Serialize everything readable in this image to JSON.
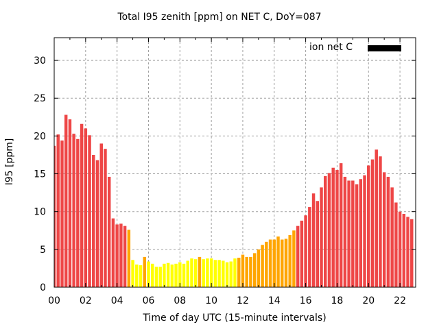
{
  "chart_data": {
    "type": "bar",
    "title": "Total I95 zenith [ppm] on NET C, DoY=087",
    "xlabel": "Time of day UTC (15-minute intervals)",
    "ylabel": "I95 [ppm]",
    "xlim": [
      0,
      23
    ],
    "ylim": [
      0,
      33
    ],
    "x_interval_hours": 0.25,
    "x_ticks": [
      "00",
      "02",
      "04",
      "06",
      "08",
      "10",
      "12",
      "14",
      "16",
      "18",
      "20",
      "22"
    ],
    "x_tick_values": [
      0,
      2,
      4,
      6,
      8,
      10,
      12,
      14,
      16,
      18,
      20,
      22
    ],
    "y_ticks": [
      "0",
      "5",
      "10",
      "15",
      "20",
      "25",
      "30"
    ],
    "y_tick_values": [
      0,
      5,
      10,
      15,
      20,
      25,
      30
    ],
    "grid": true,
    "legend": {
      "label": "ion net C",
      "color": "#000000",
      "placement": "top-right"
    },
    "colors": {
      "red": "#ee4646",
      "orange": "#ffa500",
      "yellow": "#ffff00"
    },
    "values": [
      18.7,
      20.2,
      19.4,
      22.8,
      22.2,
      20.3,
      19.6,
      21.6,
      21.0,
      20.1,
      17.5,
      16.8,
      19.0,
      18.3,
      14.6,
      9.1,
      8.3,
      8.4,
      8.1,
      7.6,
      3.6,
      3.0,
      2.9,
      4.0,
      3.4,
      3.1,
      2.7,
      2.7,
      3.1,
      3.2,
      3.0,
      3.1,
      3.3,
      3.1,
      3.5,
      3.8,
      3.7,
      4.0,
      3.7,
      3.8,
      3.8,
      3.6,
      3.6,
      3.5,
      3.3,
      3.4,
      3.8,
      3.9,
      4.3,
      4.0,
      4.0,
      4.5,
      5.0,
      5.6,
      6.0,
      6.3,
      6.3,
      6.7,
      6.3,
      6.4,
      6.9,
      7.5,
      8.1,
      8.8,
      9.5,
      10.6,
      12.4,
      11.4,
      13.2,
      14.7,
      15.1,
      15.8,
      15.5,
      16.4,
      14.6,
      14.1,
      14.1,
      13.6,
      14.3,
      14.8,
      16.1,
      16.9,
      18.2,
      17.3,
      15.2,
      14.6,
      13.2,
      11.2,
      10.0,
      9.7,
      9.3,
      9.0
    ],
    "bar_colors": [
      "red",
      "red",
      "red",
      "red",
      "red",
      "red",
      "red",
      "red",
      "red",
      "red",
      "red",
      "red",
      "red",
      "red",
      "red",
      "red",
      "red",
      "red",
      "red",
      "orange",
      "yellow",
      "yellow",
      "yellow",
      "orange",
      "yellow",
      "yellow",
      "yellow",
      "yellow",
      "yellow",
      "yellow",
      "yellow",
      "yellow",
      "yellow",
      "yellow",
      "yellow",
      "yellow",
      "yellow",
      "orange",
      "yellow",
      "yellow",
      "yellow",
      "yellow",
      "yellow",
      "yellow",
      "yellow",
      "yellow",
      "yellow",
      "orange",
      "orange",
      "orange",
      "orange",
      "orange",
      "orange",
      "orange",
      "orange",
      "orange",
      "orange",
      "orange",
      "orange",
      "orange",
      "orange",
      "orange",
      "red",
      "red",
      "red",
      "red",
      "red",
      "red",
      "red",
      "red",
      "red",
      "red",
      "red",
      "red",
      "red",
      "red",
      "red",
      "red",
      "red",
      "red",
      "red",
      "red",
      "red",
      "red",
      "red",
      "red",
      "red",
      "red",
      "red",
      "red",
      "red",
      "red"
    ]
  }
}
